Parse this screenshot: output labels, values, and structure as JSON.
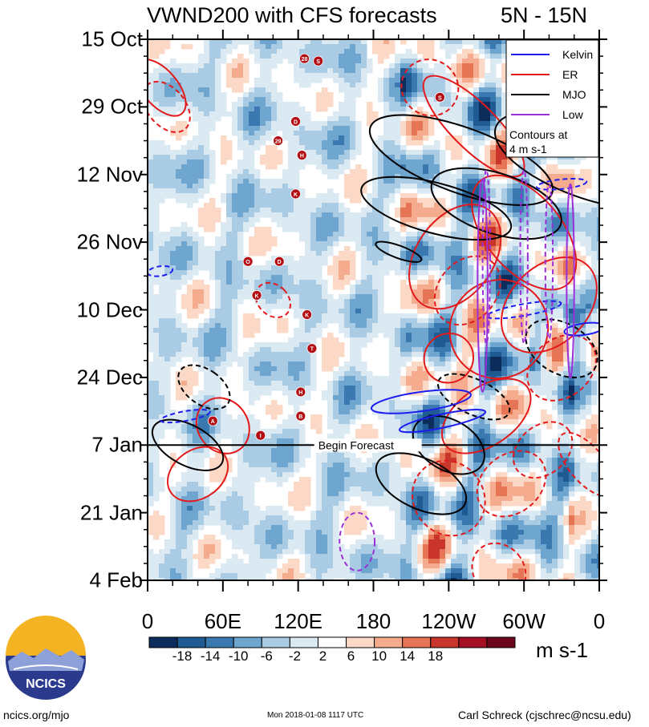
{
  "title": {
    "main": "VWND200 with CFS forecasts",
    "latitude": "5N - 15N"
  },
  "chart_data": {
    "type": "heatmap",
    "description_kind": "Hovmoller time-longitude plot",
    "variable": "VWND200",
    "x_ticks": [
      "0",
      "60E",
      "120E",
      "180",
      "120W",
      "60W",
      "0"
    ],
    "x_tick_degrees": [
      0,
      60,
      120,
      180,
      240,
      300,
      360
    ],
    "xlim": [
      0,
      360
    ],
    "y_ticks": [
      "15 Oct",
      "29 Oct",
      "12 Nov",
      "26 Nov",
      "10 Dec",
      "24 Dec",
      "7 Jan",
      "21 Jan",
      "4 Feb"
    ],
    "y_tick_days": [
      0,
      14,
      28,
      42,
      56,
      70,
      84,
      98,
      112
    ],
    "ylim_days": [
      0,
      112
    ],
    "forecast_start_day": 84,
    "forecast_label": "Begin Forecast",
    "colorbar": {
      "ticks": [
        "-18",
        "-14",
        "-10",
        "-6",
        "-2",
        "2",
        "6",
        "10",
        "14",
        "18"
      ],
      "levels": [
        -18,
        -14,
        -10,
        -6,
        -2,
        2,
        6,
        10,
        14,
        18
      ],
      "colors": [
        "#0c2d5c",
        "#1f5a93",
        "#3a78b0",
        "#6fa6d0",
        "#a9cbe4",
        "#dbe9f3",
        "#ffffff",
        "#fbd9c6",
        "#f4ab8e",
        "#e67556",
        "#c9342b",
        "#a50f24",
        "#6e061b"
      ],
      "units": "m s-1"
    },
    "legend": {
      "placement": "top-right",
      "entries": [
        {
          "label": "Kelvin",
          "color": "#1d1df0"
        },
        {
          "label": "ER",
          "color": "#e31a1c"
        },
        {
          "label": "MJO",
          "color": "#000000"
        },
        {
          "label": "Low",
          "color": "#9b30d9"
        }
      ],
      "note": "Contours at\n4 m s-1"
    },
    "storm_labels": [
      {
        "label": "28",
        "lon": 125,
        "day": 4
      },
      {
        "label": "S",
        "lon": 136,
        "day": 4.5
      },
      {
        "label": "S",
        "lon": 233,
        "day": 12
      },
      {
        "label": "D",
        "lon": 118,
        "day": 17
      },
      {
        "label": "29",
        "lon": 104,
        "day": 21
      },
      {
        "label": "H",
        "lon": 123,
        "day": 24
      },
      {
        "label": "K",
        "lon": 118,
        "day": 32
      },
      {
        "label": "O",
        "lon": 80,
        "day": 46
      },
      {
        "label": "D",
        "lon": 105,
        "day": 46
      },
      {
        "label": "K",
        "lon": 87,
        "day": 53
      },
      {
        "label": "K",
        "lon": 127,
        "day": 57
      },
      {
        "label": "T",
        "lon": 131,
        "day": 64
      },
      {
        "label": "H",
        "lon": 122,
        "day": 73
      },
      {
        "label": "B",
        "lon": 122,
        "day": 78
      },
      {
        "label": "A",
        "lon": 52,
        "day": 79
      },
      {
        "label": "I",
        "lon": 90,
        "day": 82
      }
    ]
  },
  "footer": {
    "left": "ncics.org/mjo",
    "middle": "Mon 2018-01-08 1117 UTC",
    "right": "Carl Schreck (cjschrec@ncsu.edu)"
  },
  "logo": {
    "text": "NCICS"
  }
}
